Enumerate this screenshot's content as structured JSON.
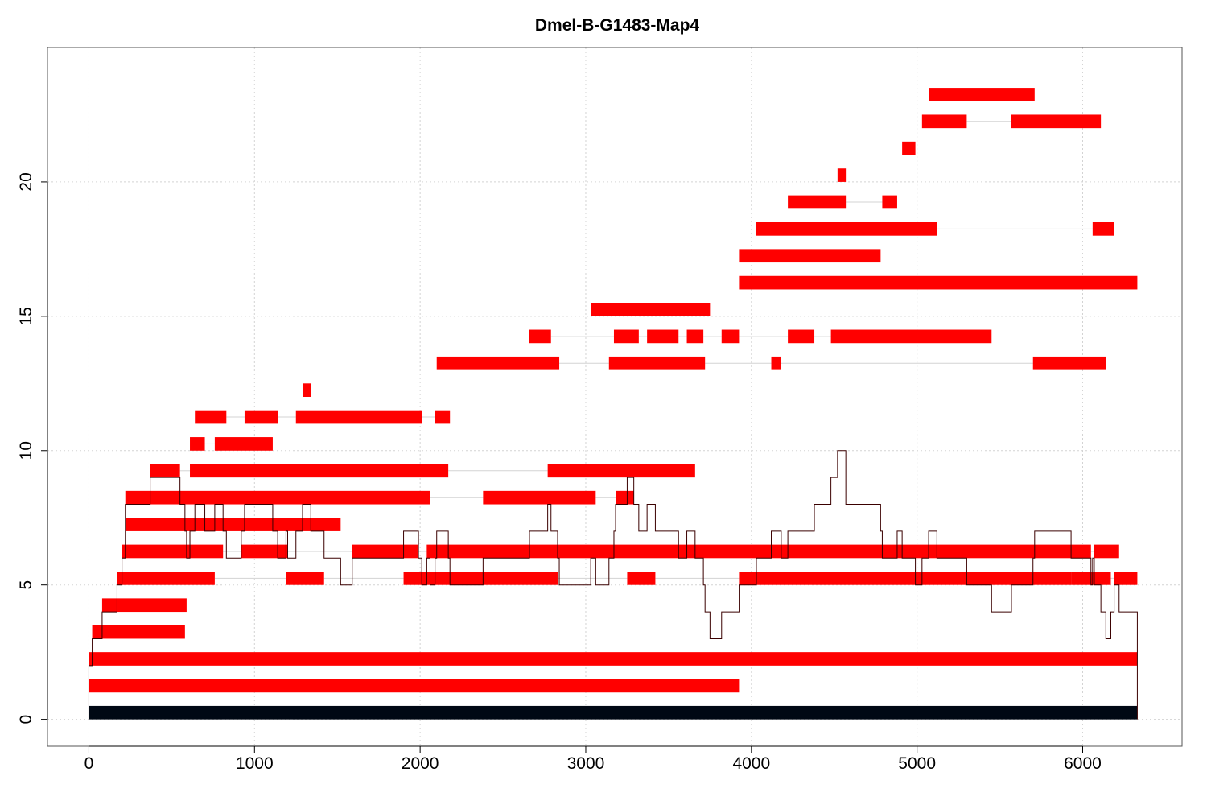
{
  "chart_data": {
    "type": "segments",
    "title": "Dmel-B-G1483-Map4",
    "xlabel": "",
    "ylabel": "",
    "xlim": [
      -250,
      6600
    ],
    "ylim": [
      -1,
      25
    ],
    "x_ticks": [
      0,
      1000,
      2000,
      3000,
      4000,
      5000,
      6000
    ],
    "y_ticks": [
      0,
      5,
      10,
      15,
      20
    ],
    "grid": true,
    "colors": {
      "segment": "#ff0000",
      "reference": "#000814",
      "connector": "#d3d3d3",
      "coverage": "#3a0000",
      "grid": "#d3d3d3"
    },
    "reference": {
      "x": [
        0,
        6330
      ],
      "y": 0.25
    },
    "rows": [
      {
        "y": 1.25,
        "segments": [
          [
            0,
            3930
          ]
        ]
      },
      {
        "y": 2.25,
        "segments": [
          [
            0,
            6330
          ]
        ]
      },
      {
        "y": 3.25,
        "segments": [
          [
            20,
            580
          ]
        ]
      },
      {
        "y": 4.25,
        "segments": [
          [
            80,
            590
          ]
        ]
      },
      {
        "y": 5.25,
        "segments": [
          [
            170,
            760
          ],
          [
            1190,
            1420
          ],
          [
            1900,
            2830
          ],
          [
            3250,
            3420
          ],
          [
            3930,
            5930
          ],
          [
            5930,
            6170
          ],
          [
            6190,
            6330
          ]
        ]
      },
      {
        "y": 6.25,
        "segments": [
          [
            200,
            810
          ],
          [
            920,
            1200
          ],
          [
            1590,
            1990
          ],
          [
            2040,
            6050
          ],
          [
            6070,
            6220
          ]
        ]
      },
      {
        "y": 7.25,
        "segments": [
          [
            220,
            1520
          ]
        ]
      },
      {
        "y": 8.25,
        "segments": [
          [
            220,
            2060
          ],
          [
            2380,
            3060
          ],
          [
            3180,
            3290
          ]
        ]
      },
      {
        "y": 9.25,
        "segments": [
          [
            370,
            550
          ],
          [
            610,
            2170
          ],
          [
            2770,
            3660
          ]
        ]
      },
      {
        "y": 10.25,
        "segments": [
          [
            610,
            700
          ],
          [
            760,
            1110
          ]
        ]
      },
      {
        "y": 11.25,
        "segments": [
          [
            640,
            830
          ],
          [
            940,
            1140
          ],
          [
            1250,
            2010
          ],
          [
            2090,
            2180
          ]
        ]
      },
      {
        "y": 12.25,
        "segments": [
          [
            1290,
            1340
          ]
        ]
      },
      {
        "y": 13.25,
        "segments": [
          [
            2100,
            2840
          ],
          [
            3140,
            3720
          ],
          [
            4120,
            4180
          ],
          [
            5700,
            6140
          ]
        ]
      },
      {
        "y": 14.25,
        "segments": [
          [
            2660,
            2790
          ],
          [
            3170,
            3320
          ],
          [
            3370,
            3560
          ],
          [
            3610,
            3710
          ],
          [
            3820,
            3930
          ],
          [
            4220,
            4380
          ],
          [
            4480,
            5450
          ]
        ]
      },
      {
        "y": 15.25,
        "segments": [
          [
            3030,
            3750
          ]
        ]
      },
      {
        "y": 16.25,
        "segments": [
          [
            3930,
            6330
          ]
        ]
      },
      {
        "y": 17.25,
        "segments": [
          [
            3930,
            4780
          ]
        ]
      },
      {
        "y": 18.25,
        "segments": [
          [
            4030,
            5120
          ],
          [
            6060,
            6190
          ]
        ]
      },
      {
        "y": 19.25,
        "segments": [
          [
            4220,
            4570
          ],
          [
            4790,
            4880
          ]
        ]
      },
      {
        "y": 20.25,
        "segments": [
          [
            4520,
            4570
          ]
        ]
      },
      {
        "y": 21.25,
        "segments": [
          [
            4910,
            4990
          ]
        ]
      },
      {
        "y": 22.25,
        "segments": [
          [
            5030,
            5300
          ],
          [
            5570,
            6110
          ]
        ]
      },
      {
        "y": 23.25,
        "segments": [
          [
            5070,
            5710
          ]
        ]
      }
    ],
    "coverage": {
      "x": [
        0,
        20,
        80,
        170,
        200,
        220,
        370,
        550,
        580,
        590,
        610,
        640,
        700,
        760,
        810,
        830,
        920,
        940,
        1110,
        1140,
        1190,
        1200,
        1250,
        1290,
        1340,
        1420,
        1520,
        1590,
        1900,
        1990,
        2010,
        2040,
        2060,
        2090,
        2100,
        2170,
        2180,
        2380,
        2660,
        2770,
        2790,
        2830,
        2840,
        3030,
        3060,
        3140,
        3170,
        3180,
        3250,
        3290,
        3320,
        3370,
        3420,
        3560,
        3610,
        3660,
        3710,
        3720,
        3750,
        3820,
        3930,
        4030,
        4120,
        4180,
        4220,
        4380,
        4480,
        4520,
        4570,
        4780,
        4790,
        4880,
        4910,
        4990,
        5030,
        5070,
        5120,
        5300,
        5450,
        5570,
        5700,
        5710,
        5930,
        6050,
        6060,
        6070,
        6110,
        6140,
        6170,
        6190,
        6220,
        6330
      ],
      "y": [
        2,
        3,
        4,
        5,
        6,
        8,
        9,
        8,
        7,
        6,
        7,
        8,
        7,
        8,
        7,
        6,
        7,
        8,
        7,
        6,
        7,
        6,
        7,
        8,
        7,
        6,
        5,
        6,
        7,
        6,
        5,
        6,
        5,
        6,
        7,
        6,
        5,
        6,
        7,
        8,
        7,
        6,
        5,
        6,
        5,
        6,
        7,
        8,
        9,
        8,
        7,
        8,
        7,
        6,
        7,
        6,
        5,
        4,
        3,
        4,
        5,
        6,
        7,
        6,
        7,
        8,
        9,
        10,
        8,
        7,
        6,
        7,
        6,
        5,
        6,
        7,
        6,
        5,
        4,
        5,
        6,
        7,
        6,
        5,
        6,
        5,
        4,
        3,
        4,
        5,
        4,
        0
      ]
    }
  }
}
